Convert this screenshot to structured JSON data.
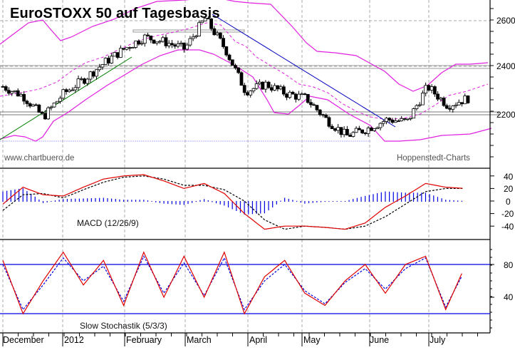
{
  "header": {
    "title": "EuroSTOXX 50 auf Tagesbasis",
    "watermark_left": "www.chartbuero.de",
    "watermark_right": "Hoppenstedt-Charts"
  },
  "panels": {
    "price": {
      "label": "",
      "y_ticks": [
        "2600",
        "2400",
        "2200"
      ]
    },
    "macd": {
      "label": "MACD (12/26/9)",
      "y_ticks": [
        "40",
        "20",
        "0",
        "-20",
        "-40"
      ]
    },
    "stoch": {
      "label": "Slow Stochastik (5/3/3)",
      "y_ticks": [
        "80",
        "40"
      ]
    }
  },
  "x_axis": {
    "labels": [
      "December",
      "2012",
      "February",
      "March",
      "April",
      "May",
      "June",
      "July"
    ]
  },
  "colors": {
    "bollinger": "#e020e0",
    "uptrend": "#008000",
    "downtrend": "#0000c0",
    "macd_line": "#e00000",
    "signal_line": "#000000",
    "histogram": "#0000e0",
    "stoch_k": "#e00000",
    "stoch_d": "#0000e0",
    "stoch_levels": "#0000e0",
    "grid": "#aaaaaa"
  },
  "chart_data": [
    {
      "type": "candlestick",
      "title": "EuroSTOXX 50 auf Tagesbasis",
      "xlabel": "",
      "ylabel": "",
      "ylim": [
        2030,
        2680
      ],
      "y_ticks": [
        2200,
        2400,
        2600
      ],
      "x_ticks": [
        "December",
        "2012",
        "February",
        "March",
        "April",
        "May",
        "June",
        "July"
      ],
      "overlays": [
        "Bollinger Bands",
        "Uptrend line (green)",
        "Downtrend line (blue)",
        "Horizontal support/resistance zones ~2200, ~2390, ~2550"
      ],
      "approx_close_series": [
        {
          "x": "Early Dec",
          "y": 2320
        },
        {
          "x": "Mid Dec",
          "y": 2280
        },
        {
          "x": "Late Dec",
          "y": 2190
        },
        {
          "x": "Early Jan",
          "y": 2290
        },
        {
          "x": "Mid Jan",
          "y": 2350
        },
        {
          "x": "Late Jan",
          "y": 2420
        },
        {
          "x": "Early Feb",
          "y": 2480
        },
        {
          "x": "Mid Feb",
          "y": 2530
        },
        {
          "x": "Late Feb",
          "y": 2510
        },
        {
          "x": "Early Mar",
          "y": 2480
        },
        {
          "x": "Mid Mar",
          "y": 2610
        },
        {
          "x": "Late Mar",
          "y": 2480
        },
        {
          "x": "Early Apr",
          "y": 2300
        },
        {
          "x": "Mid Apr",
          "y": 2330
        },
        {
          "x": "Late Apr",
          "y": 2290
        },
        {
          "x": "Early May",
          "y": 2270
        },
        {
          "x": "Mid May",
          "y": 2180
        },
        {
          "x": "Late May",
          "y": 2110
        },
        {
          "x": "Early Jun",
          "y": 2140
        },
        {
          "x": "Mid Jun",
          "y": 2180
        },
        {
          "x": "Late Jun",
          "y": 2170
        },
        {
          "x": "Early Jul",
          "y": 2320
        },
        {
          "x": "Mid Jul",
          "y": 2240
        },
        {
          "x": "Late Jul",
          "y": 2270
        }
      ]
    },
    {
      "type": "line",
      "title": "MACD (12/26/9)",
      "ylim": [
        -60,
        55
      ],
      "y_ticks": [
        -40,
        -20,
        0,
        20,
        40
      ],
      "series": [
        {
          "name": "MACD",
          "values": [
            -5,
            22,
            10,
            8,
            22,
            35,
            40,
            42,
            32,
            20,
            28,
            12,
            -20,
            -45,
            -40,
            -40,
            -42,
            -45,
            -35,
            -10,
            8,
            28,
            22,
            20
          ]
        },
        {
          "name": "Signal",
          "values": [
            -15,
            10,
            12,
            5,
            18,
            30,
            38,
            40,
            35,
            25,
            25,
            18,
            0,
            -30,
            -45,
            -40,
            -42,
            -45,
            -40,
            -25,
            -5,
            15,
            20,
            20
          ]
        },
        {
          "name": "Histogram",
          "values": [
            15,
            20,
            -2,
            3,
            4,
            5,
            2,
            2,
            -3,
            -5,
            3,
            -6,
            -20,
            -18,
            5,
            -3,
            0,
            0,
            8,
            15,
            13,
            13,
            2,
            0
          ]
        }
      ]
    },
    {
      "type": "line",
      "title": "Slow Stochastik (5/3/3)",
      "ylim": [
        0,
        100
      ],
      "y_ticks": [
        40,
        80
      ],
      "levels": [
        20,
        80
      ],
      "series": [
        {
          "name": "%K",
          "values": [
            85,
            20,
            60,
            95,
            55,
            85,
            30,
            95,
            40,
            90,
            40,
            95,
            20,
            65,
            85,
            45,
            30,
            60,
            80,
            45,
            80,
            90,
            25,
            80
          ]
        },
        {
          "name": "%D",
          "values": [
            80,
            25,
            55,
            88,
            60,
            78,
            35,
            90,
            45,
            82,
            42,
            88,
            25,
            60,
            80,
            48,
            32,
            58,
            75,
            50,
            75,
            88,
            28,
            75
          ]
        }
      ]
    }
  ]
}
